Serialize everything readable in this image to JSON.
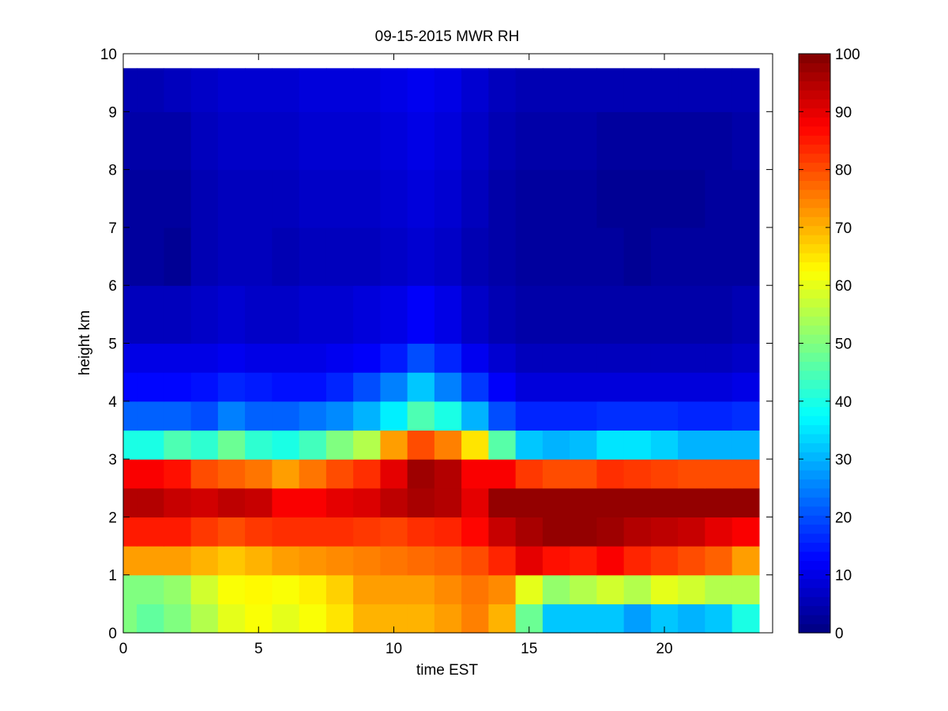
{
  "chart_data": {
    "type": "heatmap",
    "title": "09-15-2015 MWR RH",
    "xlabel": "time EST",
    "ylabel": "height km",
    "colormap": "jet",
    "xlim": [
      0,
      24
    ],
    "ylim": [
      0,
      10
    ],
    "clim": [
      0,
      100
    ],
    "x_ticks": [
      0,
      5,
      10,
      15,
      20
    ],
    "y_ticks": [
      0,
      1,
      2,
      3,
      4,
      5,
      6,
      7,
      8,
      9,
      10
    ],
    "colorbar_ticks": [
      0,
      10,
      20,
      30,
      40,
      50,
      60,
      70,
      80,
      90,
      100
    ],
    "grid": false,
    "colorbar": "right",
    "time_hours": [
      0,
      0.5,
      1.5,
      2.5,
      3.5,
      4.5,
      5.5,
      6.5,
      7.5,
      8.5,
      9.5,
      10.5,
      11.5,
      12.5,
      13.5,
      14.5,
      15.5,
      16.5,
      17.5,
      18.5,
      19.5,
      20.5,
      21.5,
      22.5,
      23.5
    ],
    "height_km": [
      0,
      0.5,
      1,
      1.5,
      2,
      2.5,
      3,
      3.5,
      4,
      4.5,
      5,
      6,
      7,
      8,
      9,
      9.75
    ],
    "rh_percent": [
      [
        50,
        47,
        50,
        55,
        60,
        62,
        60,
        62,
        65,
        70,
        70,
        70,
        72,
        75,
        70,
        48,
        32,
        32,
        32,
        28,
        32,
        30,
        32,
        40,
        48
      ],
      [
        50,
        50,
        52,
        58,
        62,
        63,
        62,
        64,
        67,
        72,
        72,
        72,
        74,
        76,
        74,
        60,
        52,
        55,
        58,
        55,
        60,
        58,
        55,
        55,
        58
      ],
      [
        72,
        72,
        72,
        70,
        68,
        70,
        72,
        73,
        74,
        75,
        76,
        77,
        78,
        80,
        84,
        90,
        86,
        85,
        88,
        84,
        82,
        80,
        78,
        72,
        72
      ],
      [
        85,
        85,
        85,
        82,
        80,
        82,
        83,
        83,
        83,
        82,
        81,
        83,
        84,
        87,
        93,
        96,
        98,
        98,
        97,
        95,
        94,
        93,
        90,
        88,
        88
      ],
      [
        95,
        95,
        93,
        92,
        94,
        93,
        88,
        88,
        90,
        91,
        94,
        96,
        95,
        90,
        98,
        98,
        98,
        98,
        98,
        98,
        98,
        98,
        98,
        98,
        97
      ],
      [
        88,
        88,
        86,
        80,
        78,
        76,
        72,
        76,
        80,
        83,
        90,
        97,
        95,
        88,
        88,
        82,
        80,
        80,
        83,
        82,
        81,
        80,
        80,
        80,
        82
      ],
      [
        40,
        40,
        45,
        42,
        48,
        42,
        40,
        44,
        50,
        55,
        72,
        80,
        75,
        65,
        46,
        32,
        30,
        31,
        35,
        35,
        33,
        30,
        30,
        30,
        32
      ],
      [
        22,
        22,
        22,
        20,
        25,
        22,
        22,
        24,
        26,
        30,
        36,
        45,
        40,
        30,
        20,
        16,
        16,
        16,
        17,
        17,
        17,
        16,
        16,
        17,
        18
      ],
      [
        13,
        13,
        13,
        14,
        16,
        15,
        14,
        14,
        16,
        20,
        25,
        32,
        25,
        18,
        12,
        9,
        9,
        9,
        9,
        9,
        9,
        9,
        9,
        10,
        11
      ],
      [
        10,
        10,
        10,
        10,
        11,
        10,
        10,
        10,
        11,
        12,
        15,
        20,
        16,
        11,
        8,
        6,
        6,
        6,
        6,
        6,
        6,
        6,
        6,
        7,
        8
      ],
      [
        6,
        6,
        6,
        7,
        8,
        7,
        7,
        8,
        8,
        9,
        10,
        12,
        10,
        7,
        5,
        4,
        4,
        4,
        4,
        4,
        4,
        4,
        4,
        5,
        5
      ],
      [
        3,
        3,
        2,
        5,
        6,
        6,
        5,
        6,
        6,
        6,
        7,
        8,
        7,
        5,
        4,
        3,
        3,
        3,
        3,
        2,
        3,
        3,
        3,
        3,
        3
      ],
      [
        3,
        3,
        3,
        5,
        6,
        6,
        6,
        7,
        7,
        7,
        8,
        9,
        8,
        6,
        4,
        3,
        3,
        3,
        2,
        2,
        2,
        2,
        3,
        3,
        3
      ],
      [
        4,
        4,
        4,
        6,
        7,
        7,
        7,
        8,
        8,
        8,
        9,
        10,
        9,
        7,
        5,
        4,
        4,
        4,
        3,
        3,
        3,
        3,
        3,
        4,
        4
      ],
      [
        5,
        5,
        6,
        7,
        8,
        8,
        8,
        9,
        9,
        9,
        10,
        11,
        10,
        8,
        6,
        5,
        5,
        5,
        5,
        5,
        5,
        5,
        5,
        5,
        5
      ],
      [
        7,
        7,
        8,
        8,
        9,
        9,
        10,
        10,
        10,
        11,
        12,
        13,
        12,
        10,
        8,
        7,
        7,
        7,
        7,
        7,
        7,
        7,
        7,
        7,
        7
      ]
    ]
  }
}
